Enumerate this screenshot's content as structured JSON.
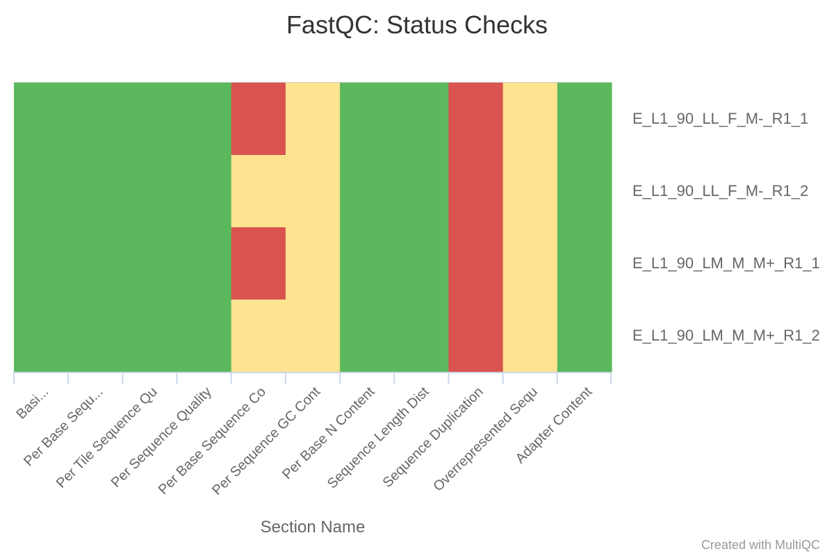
{
  "credits": "Created with MultiQC",
  "chart_data": {
    "type": "heatmap",
    "title": "FastQC: Status Checks",
    "xlabel": "Section Name",
    "ylabel": "",
    "categories": [
      "Basi...",
      "Per Base Sequ...",
      "Per Tile Sequence Qu",
      "Per Sequence Quality",
      "Per Base Sequence Co",
      "Per Sequence GC Cont",
      "Per Base N Content",
      "Sequence Length Dist",
      "Sequence Duplication",
      "Overrepresented Sequ",
      "Adapter Content"
    ],
    "samples": [
      "E_L1_90_LL_F_M-_R1_1",
      "E_L1_90_LL_F_M-_R1_2",
      "E_L1_90_LM_M_M+_R1_1",
      "E_L1_90_LM_M_M+_R1_2"
    ],
    "status": [
      [
        "pass",
        "pass",
        "pass",
        "pass",
        "fail",
        "warn",
        "pass",
        "pass",
        "fail",
        "warn",
        "pass"
      ],
      [
        "pass",
        "pass",
        "pass",
        "pass",
        "warn",
        "warn",
        "pass",
        "pass",
        "fail",
        "warn",
        "pass"
      ],
      [
        "pass",
        "pass",
        "pass",
        "pass",
        "fail",
        "warn",
        "pass",
        "pass",
        "fail",
        "warn",
        "pass"
      ],
      [
        "pass",
        "pass",
        "pass",
        "pass",
        "warn",
        "warn",
        "pass",
        "pass",
        "fail",
        "warn",
        "pass"
      ]
    ],
    "colors": {
      "pass": "#5cb85c",
      "warn": "#fee391",
      "fail": "#d9534f"
    }
  }
}
